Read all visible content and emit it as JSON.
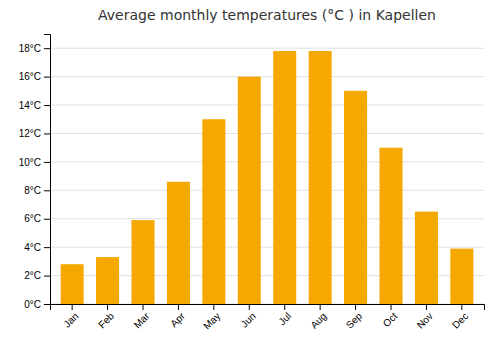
{
  "chart_data": {
    "type": "bar",
    "title": "Average monthly temperatures (°C ) in Kapellen",
    "categories": [
      "Jan",
      "Feb",
      "Mar",
      "Apr",
      "May",
      "Jun",
      "Jul",
      "Aug",
      "Sep",
      "Oct",
      "Nov",
      "Dec"
    ],
    "values": [
      2.8,
      3.3,
      5.9,
      8.6,
      13.0,
      16.0,
      17.8,
      17.8,
      15.0,
      11.0,
      6.5,
      3.9
    ],
    "color": "#F5A800",
    "ylim": [
      0,
      19
    ],
    "yticks": [
      {
        "value": 0,
        "label": "0°C"
      },
      {
        "value": 2,
        "label": "2°C"
      },
      {
        "value": 4,
        "label": "4°C"
      },
      {
        "value": 6,
        "label": "6°C"
      },
      {
        "value": 8,
        "label": "8°C"
      },
      {
        "value": 10,
        "label": "10°C"
      },
      {
        "value": 12,
        "label": "12°C"
      },
      {
        "value": 14,
        "label": "14°C"
      },
      {
        "value": 16,
        "label": "16°C"
      },
      {
        "value": 18,
        "label": "18°C"
      }
    ],
    "grid": true
  }
}
